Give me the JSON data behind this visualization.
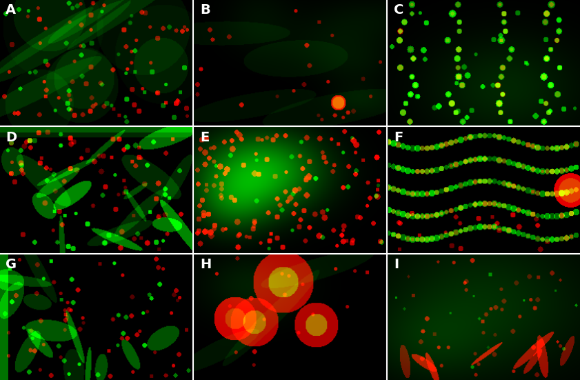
{
  "labels": [
    "A",
    "B",
    "C",
    "D",
    "E",
    "F",
    "G",
    "H",
    "I"
  ],
  "grid_rows": 3,
  "grid_cols": 3,
  "fig_width": 8.41,
  "fig_height": 5.51,
  "background_color": "#000000",
  "label_color": "#ffffff",
  "label_fontsize": 14,
  "label_fontweight": "bold"
}
